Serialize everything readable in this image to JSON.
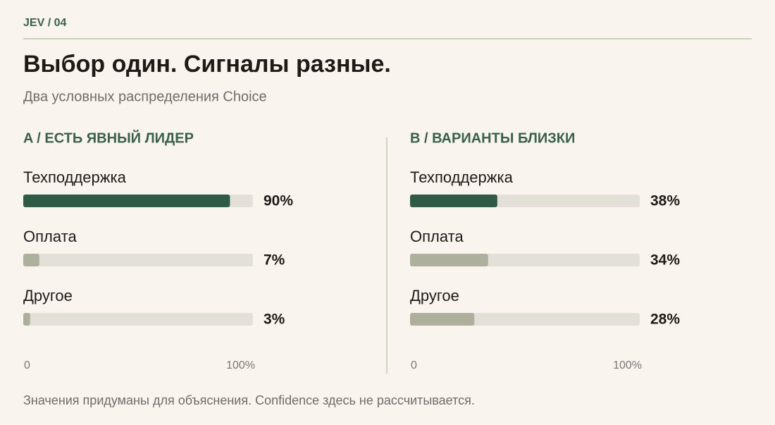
{
  "header": {
    "kicker": "JEV / 04",
    "title": "Выбор один. Сигналы разные.",
    "subtitle": "Два условных распределения Choice"
  },
  "footnote": "Значения придуманы для объяснения. Confidence здесь не рассчитывается.",
  "chart_data": [
    {
      "type": "bar",
      "orientation": "horizontal",
      "title": "A / ЕСТЬ ЯВНЫЙ ЛИДЕР",
      "categories": [
        "Техподдержка",
        "Оплата",
        "Другое"
      ],
      "values": [
        90,
        7,
        3
      ],
      "value_labels": [
        "90%",
        "7%",
        "3%"
      ],
      "colors": [
        "#2e5a46",
        "#adb09c",
        "#adb09c"
      ],
      "xlim": [
        0,
        100
      ],
      "xticks": [
        0,
        {
          "value": 100,
          "label": "100%"
        }
      ]
    },
    {
      "type": "bar",
      "orientation": "horizontal",
      "title": "B / ВАРИАНТЫ БЛИЗКИ",
      "categories": [
        "Техподдержка",
        "Оплата",
        "Другое"
      ],
      "values": [
        38,
        34,
        28
      ],
      "value_labels": [
        "38%",
        "34%",
        "28%"
      ],
      "colors": [
        "#2e5a46",
        "#adb09c",
        "#adb09c"
      ],
      "xlim": [
        0,
        100
      ],
      "xticks": [
        0,
        {
          "value": 100,
          "label": "100%"
        }
      ]
    }
  ]
}
